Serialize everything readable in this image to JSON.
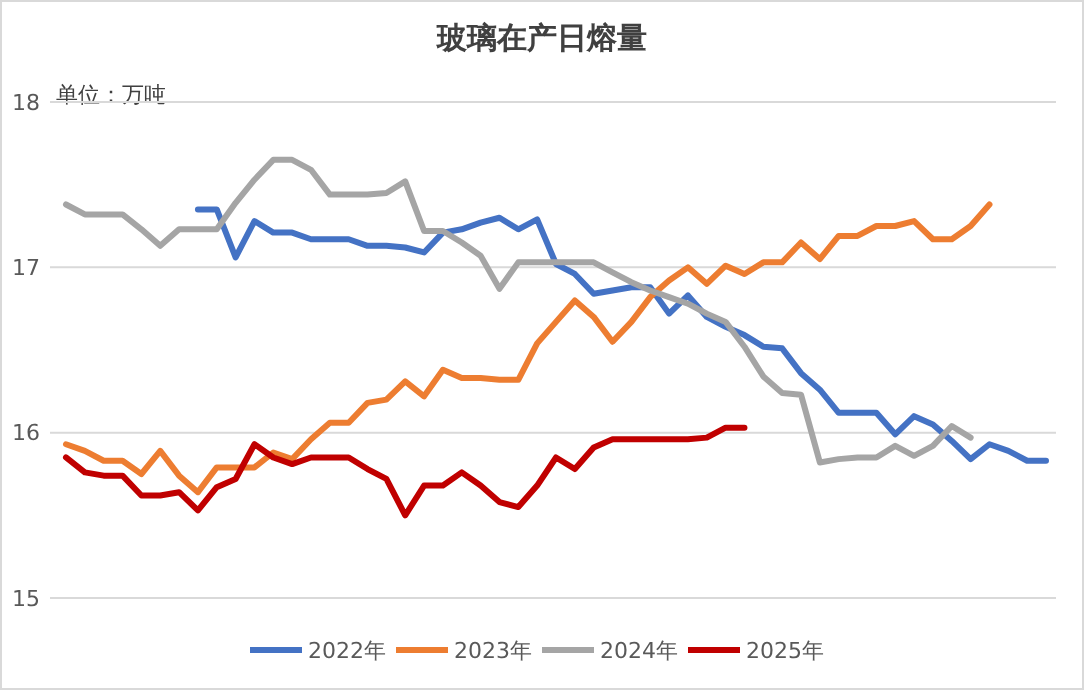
{
  "chart_data": {
    "type": "line",
    "title": "玻璃在产日熔量",
    "annotations": [
      "单位：万吨"
    ],
    "categories": [
      null,
      null,
      null,
      null,
      null,
      null,
      null,
      null,
      null,
      null,
      null,
      null,
      null,
      null,
      null,
      null,
      null,
      null,
      null,
      null,
      null,
      null,
      null,
      null,
      null,
      null,
      null,
      null,
      null,
      null,
      null,
      null,
      null,
      null,
      null,
      null,
      null,
      null,
      null,
      null,
      null,
      null,
      null,
      null,
      null,
      null,
      null,
      null,
      null,
      null,
      null,
      null,
      null
    ],
    "ylim": [
      15,
      18
    ],
    "yticks": [
      15,
      16,
      17,
      18
    ],
    "grid": "y",
    "legend": "bottom",
    "marker": "none",
    "line_style": "solid",
    "tick_labels": "y",
    "series": [
      {
        "name": "2022年",
        "color": "#4472c4",
        "values": [
          null,
          null,
          null,
          null,
          null,
          null,
          null,
          17.35,
          17.35,
          17.06,
          17.28,
          17.21,
          17.21,
          17.17,
          17.17,
          17.17,
          17.13,
          17.13,
          17.12,
          17.09,
          17.21,
          17.23,
          17.27,
          17.3,
          17.23,
          17.29,
          17.02,
          16.96,
          16.84,
          16.86,
          16.88,
          16.88,
          16.72,
          16.83,
          16.7,
          16.64,
          16.59,
          16.52,
          16.51,
          16.36,
          16.26,
          16.12,
          16.12,
          16.12,
          15.99,
          16.1,
          16.05,
          15.95,
          15.84,
          15.93,
          15.89,
          15.83,
          15.83
        ]
      },
      {
        "name": "2023年",
        "color": "#ed7d31",
        "values": [
          15.93,
          15.89,
          15.83,
          15.83,
          15.75,
          15.89,
          15.74,
          15.64,
          15.79,
          15.79,
          15.79,
          15.88,
          15.84,
          15.96,
          16.06,
          16.06,
          16.18,
          16.2,
          16.31,
          16.22,
          16.38,
          16.33,
          16.33,
          16.32,
          16.32,
          16.54,
          16.67,
          16.8,
          16.7,
          16.55,
          16.67,
          16.82,
          16.92,
          17.0,
          16.9,
          17.01,
          16.96,
          17.03,
          17.03,
          17.15,
          17.05,
          17.19,
          17.19,
          17.25,
          17.25,
          17.28,
          17.17,
          17.17,
          17.25,
          17.38,
          null,
          null,
          null
        ]
      },
      {
        "name": "2024年",
        "color": "#a5a5a5",
        "values": [
          17.38,
          17.32,
          17.32,
          17.32,
          17.23,
          17.13,
          17.23,
          17.23,
          17.23,
          17.39,
          17.53,
          17.65,
          17.65,
          17.59,
          17.44,
          17.44,
          17.44,
          17.45,
          17.52,
          17.22,
          17.22,
          17.15,
          17.07,
          16.87,
          17.03,
          17.03,
          17.03,
          17.03,
          17.03,
          16.97,
          16.91,
          16.86,
          16.82,
          16.78,
          16.72,
          16.67,
          16.52,
          16.34,
          16.24,
          16.23,
          15.82,
          15.84,
          15.85,
          15.85,
          15.92,
          15.86,
          15.92,
          16.04,
          15.97,
          null,
          null,
          null,
          null
        ]
      },
      {
        "name": "2025年",
        "color": "#c00000",
        "values": [
          15.85,
          15.76,
          15.74,
          15.74,
          15.62,
          15.62,
          15.64,
          15.53,
          15.67,
          15.72,
          15.93,
          15.85,
          15.81,
          15.85,
          15.85,
          15.85,
          15.78,
          15.72,
          15.5,
          15.68,
          15.68,
          15.76,
          15.68,
          15.58,
          15.55,
          15.68,
          15.85,
          15.78,
          15.91,
          15.96,
          15.96,
          15.96,
          15.96,
          15.96,
          15.97,
          16.03,
          16.03,
          null,
          null,
          null,
          null,
          null,
          null,
          null,
          null,
          null,
          null,
          null,
          null,
          null,
          null,
          null,
          null
        ]
      }
    ]
  }
}
